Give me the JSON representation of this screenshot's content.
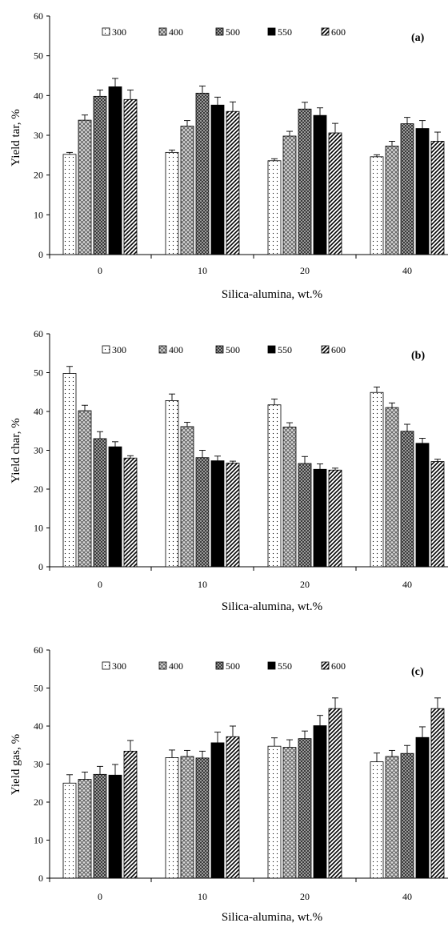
{
  "chart_data": [
    {
      "type": "bar",
      "panel_label": "(a)",
      "xlabel": "Silica-alumina,  wt.%",
      "ylabel": "Yield tar, %",
      "categories": [
        "0",
        "10",
        "20",
        "40"
      ],
      "ylim": [
        0,
        60
      ],
      "yticks": [
        "0",
        "10",
        "20",
        "30",
        "40",
        "50",
        "60"
      ],
      "legend_position": "top",
      "series": [
        {
          "name": "300",
          "pattern": "dots",
          "values": [
            25.2,
            25.7,
            23.6,
            24.6
          ],
          "errors": [
            0.5,
            0.6,
            0.5,
            0.5
          ]
        },
        {
          "name": "400",
          "pattern": "crosshatch",
          "values": [
            33.8,
            32.3,
            29.8,
            27.3
          ],
          "errors": [
            1.3,
            1.4,
            1.2,
            1.2
          ]
        },
        {
          "name": "500",
          "pattern": "dark-check",
          "values": [
            39.8,
            40.6,
            36.6,
            32.9
          ],
          "errors": [
            1.6,
            1.8,
            1.7,
            1.6
          ]
        },
        {
          "name": "550",
          "pattern": "solid-black",
          "values": [
            42.2,
            37.6,
            35.0,
            31.7
          ],
          "errors": [
            2.1,
            2.0,
            1.9,
            2.0
          ]
        },
        {
          "name": "600",
          "pattern": "diagonal",
          "values": [
            39.0,
            36.0,
            30.6,
            28.5
          ],
          "errors": [
            2.4,
            2.4,
            2.4,
            2.3
          ]
        }
      ]
    },
    {
      "type": "bar",
      "panel_label": "(b)",
      "xlabel": "Silica-alumina,  wt.%",
      "ylabel": "Yield char, %",
      "categories": [
        "0",
        "10",
        "20",
        "40"
      ],
      "ylim": [
        0,
        60
      ],
      "yticks": [
        "0",
        "10",
        "20",
        "30",
        "40",
        "50",
        "60"
      ],
      "legend_position": "top",
      "series": [
        {
          "name": "300",
          "pattern": "dots",
          "values": [
            49.8,
            42.8,
            41.7,
            44.9
          ],
          "errors": [
            1.8,
            1.7,
            1.5,
            1.4
          ]
        },
        {
          "name": "400",
          "pattern": "crosshatch",
          "values": [
            40.2,
            36.1,
            36.0,
            41.0
          ],
          "errors": [
            1.4,
            1.1,
            1.1,
            1.2
          ]
        },
        {
          "name": "500",
          "pattern": "dark-check",
          "values": [
            33.0,
            28.1,
            26.6,
            34.9
          ],
          "errors": [
            1.8,
            1.9,
            1.8,
            1.8
          ]
        },
        {
          "name": "550",
          "pattern": "solid-black",
          "values": [
            30.9,
            27.3,
            25.1,
            31.8
          ],
          "errors": [
            1.3,
            1.2,
            1.4,
            1.3
          ]
        },
        {
          "name": "600",
          "pattern": "diagonal",
          "values": [
            28.0,
            26.7,
            24.9,
            27.1
          ],
          "errors": [
            0.6,
            0.5,
            0.5,
            0.6
          ]
        }
      ]
    },
    {
      "type": "bar",
      "panel_label": "(c)",
      "xlabel": "Silica-alumina,  wt.%",
      "ylabel": "Yield gas, %",
      "categories": [
        "0",
        "10",
        "20",
        "40"
      ],
      "ylim": [
        0,
        60
      ],
      "yticks": [
        "0",
        "10",
        "20",
        "30",
        "40",
        "50",
        "60"
      ],
      "legend_position": "top",
      "series": [
        {
          "name": "300",
          "pattern": "dots",
          "values": [
            25.0,
            31.7,
            34.7,
            30.6
          ],
          "errors": [
            2.2,
            2.0,
            2.2,
            2.3
          ]
        },
        {
          "name": "400",
          "pattern": "crosshatch",
          "values": [
            26.0,
            32.0,
            34.4,
            32.0
          ],
          "errors": [
            1.9,
            1.6,
            2.0,
            1.6
          ]
        },
        {
          "name": "500",
          "pattern": "dark-check",
          "values": [
            27.3,
            31.6,
            36.7,
            32.8
          ],
          "errors": [
            2.1,
            1.8,
            2.0,
            2.1
          ]
        },
        {
          "name": "550",
          "pattern": "solid-black",
          "values": [
            27.1,
            35.6,
            40.1,
            37.0
          ],
          "errors": [
            2.8,
            2.8,
            2.7,
            2.8
          ]
        },
        {
          "name": "600",
          "pattern": "diagonal",
          "values": [
            33.4,
            37.2,
            44.6,
            44.6
          ],
          "errors": [
            2.8,
            2.8,
            2.8,
            2.8
          ]
        }
      ]
    }
  ]
}
